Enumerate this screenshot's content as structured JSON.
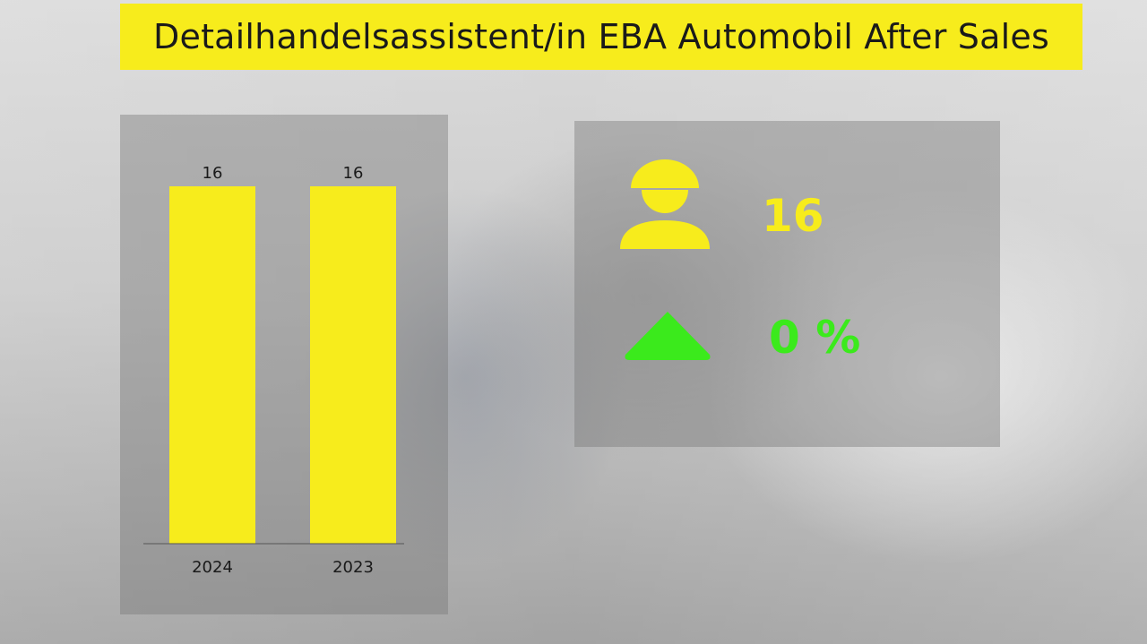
{
  "title": "Detailhandelsassistent/in EBA Automobil After Sales",
  "colors": {
    "title_bar": "#f7ec1c",
    "bar": "#f7ec1c",
    "person_icon": "#f7ec1c",
    "trend_icon": "#3bea1c",
    "count_text": "#f7ec1c",
    "change_text": "#3bea1c"
  },
  "kpi": {
    "count_icon": "person-icon",
    "count": "16",
    "trend_icon": "triangle-up-icon",
    "change": "0 %"
  },
  "chart_data": {
    "type": "bar",
    "categories": [
      "2024",
      "2023"
    ],
    "values": [
      16,
      16
    ],
    "data_labels": [
      "16",
      "16"
    ],
    "title": "",
    "xlabel": "",
    "ylabel": "",
    "ylim": [
      0,
      16
    ],
    "grid": false
  }
}
